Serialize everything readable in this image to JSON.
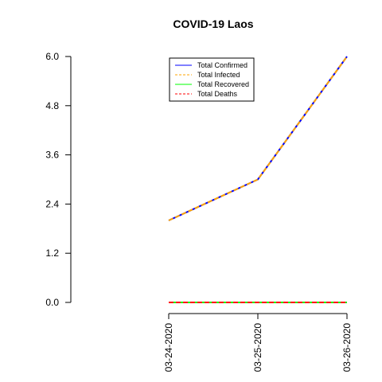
{
  "chart_data": {
    "type": "line",
    "title": "COVID-19 Laos",
    "xlabel": "",
    "ylabel": "",
    "categories": [
      "03-24-2020",
      "03-25-2020",
      "03-26-2020"
    ],
    "ylim": [
      0,
      6.0
    ],
    "yticks": [
      "0.0",
      "1.2",
      "2.4",
      "3.6",
      "4.8",
      "6.0"
    ],
    "ytick_values": [
      0,
      1.2,
      2.4,
      3.6,
      4.8,
      6.0
    ],
    "grid": false,
    "legend_position": "top-right",
    "series": [
      {
        "name": "Total Confirmed",
        "values": [
          2,
          3,
          6
        ],
        "color": "#0000ff",
        "dash": "solid"
      },
      {
        "name": "Total Infected",
        "values": [
          2,
          3,
          6
        ],
        "color": "#ffa500",
        "dash": "dashed"
      },
      {
        "name": "Total Recovered",
        "values": [
          0,
          0,
          0
        ],
        "color": "#00ff00",
        "dash": "solid"
      },
      {
        "name": "Total Deaths",
        "values": [
          0,
          0,
          0
        ],
        "color": "#ff0000",
        "dash": "dashed"
      }
    ]
  }
}
